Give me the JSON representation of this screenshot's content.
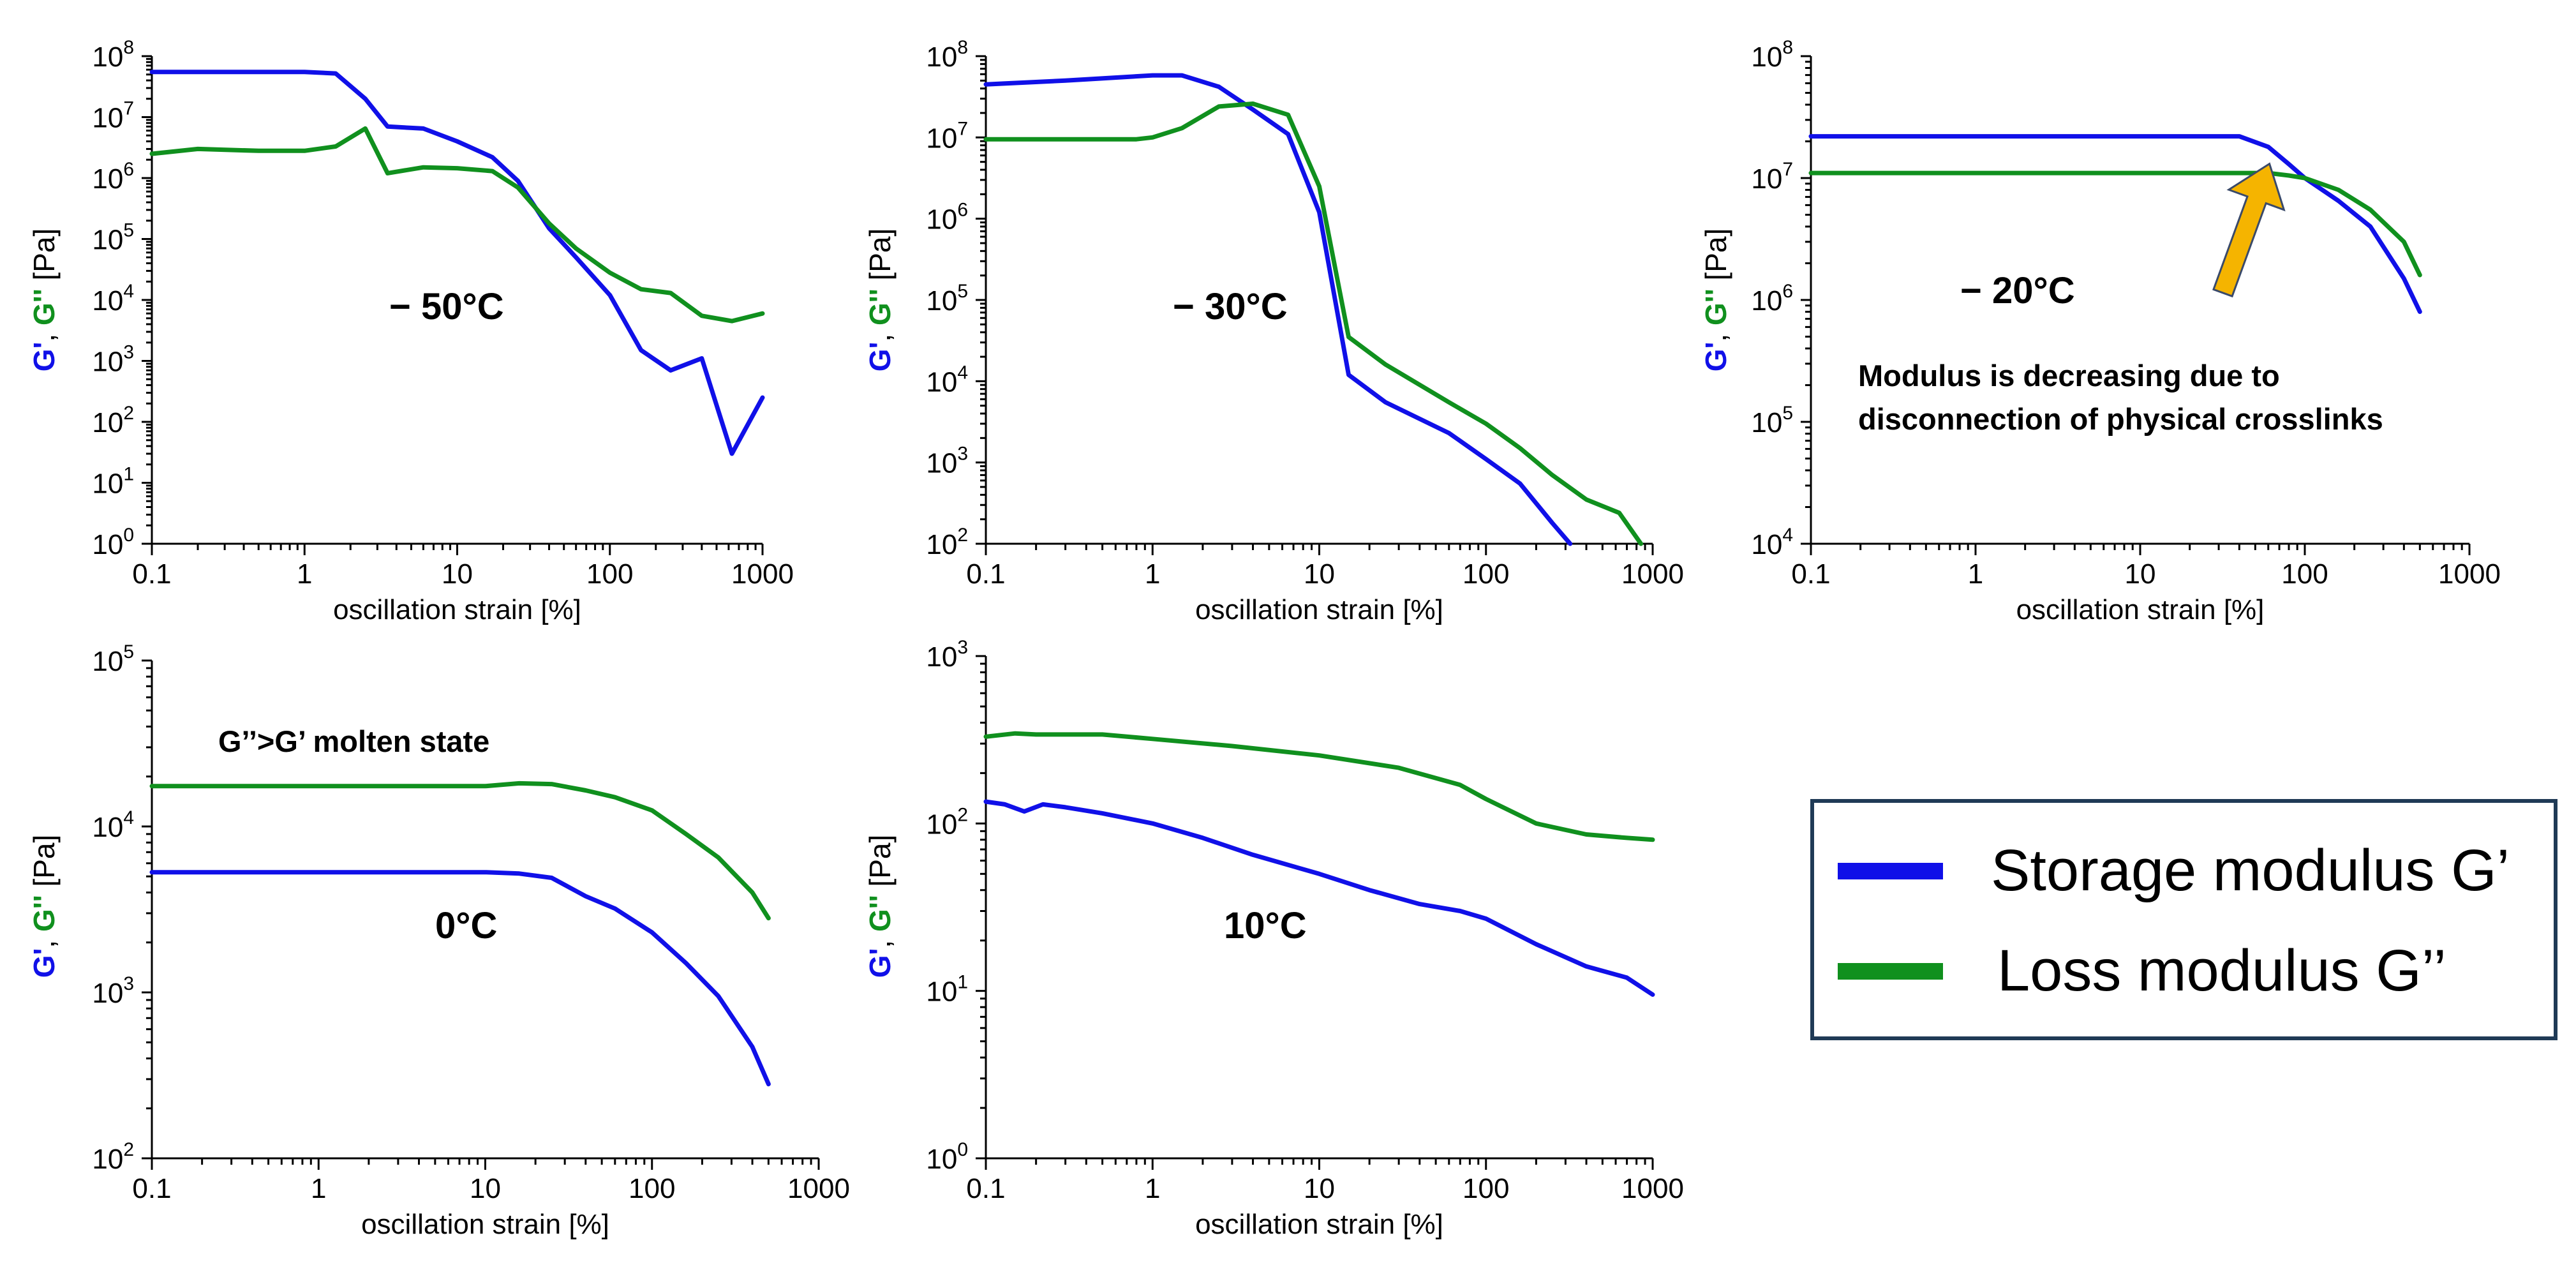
{
  "colors": {
    "storage": "#1010e8",
    "loss": "#10901e",
    "arrow": "#f5b400",
    "legend_border": "#1f3a56"
  },
  "legend": [
    {
      "label": "Storage modulus G’",
      "color": "#1010e8"
    },
    {
      "label": "Loss modulus G’’",
      "color": "#10901e"
    }
  ],
  "chart_data": [
    {
      "type": "line",
      "temperature_label": "− 50°C",
      "xlabel": "oscillation strain [%]",
      "ylabel": {
        "g1": "G'",
        "sep": ", ",
        "g2": "G''",
        "unit": " [Pa]"
      },
      "xscale": "log",
      "yscale": "log",
      "xlim": [
        0.1,
        1000
      ],
      "ylim": [
        1,
        100000000
      ],
      "x_tick_labels": [
        "0.1",
        "1",
        "10",
        "100",
        "1000"
      ],
      "y_tick_exponents": [
        "0",
        "1",
        "2",
        "3",
        "4",
        "5",
        "6",
        "7",
        "8"
      ],
      "series": [
        {
          "name": "G'",
          "color": "#1010e8",
          "points": [
            [
              0.1,
              55000000
            ],
            [
              0.3,
              55000000
            ],
            [
              1,
              55000000
            ],
            [
              1.6,
              52000000
            ],
            [
              2.5,
              20000000
            ],
            [
              3.5,
              7000000
            ],
            [
              6,
              6500000
            ],
            [
              10,
              4000000
            ],
            [
              17,
              2200000
            ],
            [
              25,
              900000
            ],
            [
              40,
              150000
            ],
            [
              60,
              50000
            ],
            [
              100,
              12000
            ],
            [
              160,
              1500
            ],
            [
              250,
              700
            ],
            [
              400,
              1100
            ],
            [
              630,
              30
            ],
            [
              1000,
              250
            ]
          ]
        },
        {
          "name": "G''",
          "color": "#10901e",
          "points": [
            [
              0.1,
              2500000
            ],
            [
              0.2,
              3000000
            ],
            [
              0.5,
              2800000
            ],
            [
              1,
              2800000
            ],
            [
              1.6,
              3300000
            ],
            [
              2.5,
              6500000
            ],
            [
              3.5,
              1200000
            ],
            [
              6,
              1500000
            ],
            [
              10,
              1450000
            ],
            [
              17,
              1300000
            ],
            [
              25,
              700000
            ],
            [
              40,
              180000
            ],
            [
              60,
              70000
            ],
            [
              100,
              28000
            ],
            [
              160,
              15000
            ],
            [
              250,
              13000
            ],
            [
              400,
              5500
            ],
            [
              630,
              4500
            ],
            [
              1000,
              6000
            ]
          ]
        }
      ]
    },
    {
      "type": "line",
      "temperature_label": "− 30°C",
      "xlabel": "oscillation strain [%]",
      "ylabel": {
        "g1": "G'",
        "sep": ", ",
        "g2": "G''",
        "unit": " [Pa]"
      },
      "xscale": "log",
      "yscale": "log",
      "xlim": [
        0.1,
        1000
      ],
      "ylim": [
        100,
        100000000
      ],
      "x_tick_labels": [
        "0.1",
        "1",
        "10",
        "100",
        "1000"
      ],
      "y_tick_exponents": [
        "2",
        "3",
        "4",
        "5",
        "6",
        "7",
        "8"
      ],
      "series": [
        {
          "name": "G'",
          "color": "#1010e8",
          "points": [
            [
              0.1,
              45000000
            ],
            [
              0.3,
              50000000
            ],
            [
              1,
              58000000
            ],
            [
              1.5,
              58000000
            ],
            [
              2.5,
              42000000
            ],
            [
              4,
              22000000
            ],
            [
              6.5,
              11000000
            ],
            [
              10,
              1200000
            ],
            [
              15,
              12000
            ],
            [
              25,
              5500
            ],
            [
              60,
              2300
            ],
            [
              100,
              1100
            ],
            [
              160,
              550
            ],
            [
              250,
              180
            ],
            [
              320,
              100
            ]
          ]
        },
        {
          "name": "G''",
          "color": "#10901e",
          "points": [
            [
              0.1,
              9500000
            ],
            [
              0.4,
              9500000
            ],
            [
              0.8,
              9500000
            ],
            [
              1,
              10000000
            ],
            [
              1.5,
              13000000
            ],
            [
              2.5,
              24000000
            ],
            [
              4,
              26000000
            ],
            [
              6.5,
              19000000
            ],
            [
              10,
              2500000
            ],
            [
              15,
              35000
            ],
            [
              25,
              16000
            ],
            [
              60,
              5500
            ],
            [
              100,
              3000
            ],
            [
              160,
              1500
            ],
            [
              250,
              700
            ],
            [
              400,
              350
            ],
            [
              630,
              240
            ],
            [
              850,
              100
            ]
          ]
        }
      ]
    },
    {
      "type": "line",
      "temperature_label": "− 20°C",
      "xlabel": "oscillation strain [%]",
      "ylabel": {
        "g1": "G'",
        "sep": ", ",
        "g2": "G''",
        "unit": " [Pa]"
      },
      "xscale": "log",
      "yscale": "log",
      "xlim": [
        0.1,
        1000
      ],
      "ylim": [
        10000,
        100000000
      ],
      "x_tick_labels": [
        "0.1",
        "1",
        "10",
        "100",
        "1000"
      ],
      "y_tick_exponents": [
        "4",
        "5",
        "6",
        "7",
        "8"
      ],
      "annotation": [
        "Modulus is decreasing due to",
        "disconnection of physical crosslinks"
      ],
      "series": [
        {
          "name": "G'",
          "color": "#1010e8",
          "points": [
            [
              0.1,
              22000000
            ],
            [
              1,
              22000000
            ],
            [
              10,
              22000000
            ],
            [
              40,
              22000000
            ],
            [
              60,
              18000000
            ],
            [
              80,
              13000000
            ],
            [
              100,
              10000000
            ],
            [
              160,
              6500000
            ],
            [
              250,
              4000000
            ],
            [
              400,
              1500000
            ],
            [
              500,
              800000
            ]
          ]
        },
        {
          "name": "G''",
          "color": "#10901e",
          "points": [
            [
              0.1,
              11000000
            ],
            [
              1,
              11000000
            ],
            [
              10,
              11000000
            ],
            [
              60,
              11000000
            ],
            [
              80,
              10500000
            ],
            [
              100,
              10000000
            ],
            [
              160,
              8000000
            ],
            [
              250,
              5500000
            ],
            [
              400,
              3000000
            ],
            [
              500,
              1600000
            ]
          ]
        }
      ]
    },
    {
      "type": "line",
      "temperature_label": "0°C",
      "xlabel": "oscillation strain [%]",
      "ylabel": {
        "g1": "G'",
        "sep": ", ",
        "g2": "G''",
        "unit": " [Pa]"
      },
      "xscale": "log",
      "yscale": "log",
      "xlim": [
        0.1,
        1000
      ],
      "ylim": [
        100,
        100000
      ],
      "x_tick_labels": [
        "0.1",
        "1",
        "10",
        "100",
        "1000"
      ],
      "y_tick_exponents": [
        "2",
        "3",
        "4",
        "5"
      ],
      "annotation": [
        "G’’>G’ molten state"
      ],
      "series": [
        {
          "name": "G'",
          "color": "#1010e8",
          "points": [
            [
              0.1,
              5300
            ],
            [
              1,
              5300
            ],
            [
              10,
              5300
            ],
            [
              16,
              5200
            ],
            [
              25,
              4900
            ],
            [
              40,
              3800
            ],
            [
              60,
              3200
            ],
            [
              100,
              2300
            ],
            [
              160,
              1500
            ],
            [
              250,
              950
            ],
            [
              400,
              470
            ],
            [
              500,
              280
            ]
          ]
        },
        {
          "name": "G''",
          "color": "#10901e",
          "points": [
            [
              0.1,
              17500
            ],
            [
              1,
              17500
            ],
            [
              10,
              17500
            ],
            [
              16,
              18200
            ],
            [
              25,
              18000
            ],
            [
              40,
              16500
            ],
            [
              60,
              15000
            ],
            [
              100,
              12500
            ],
            [
              160,
              9000
            ],
            [
              250,
              6500
            ],
            [
              400,
              4000
            ],
            [
              500,
              2800
            ]
          ]
        }
      ]
    },
    {
      "type": "line",
      "temperature_label": "10°C",
      "xlabel": "oscillation strain [%]",
      "ylabel": {
        "g1": "G'",
        "sep": ", ",
        "g2": "G''",
        "unit": " [Pa]"
      },
      "xscale": "log",
      "yscale": "log",
      "xlim": [
        0.1,
        1000
      ],
      "ylim": [
        1,
        1000
      ],
      "x_tick_labels": [
        "0.1",
        "1",
        "10",
        "100",
        "1000"
      ],
      "y_tick_exponents": [
        "0",
        "1",
        "2",
        "3"
      ],
      "series": [
        {
          "name": "G'",
          "color": "#1010e8",
          "points": [
            [
              0.1,
              135
            ],
            [
              0.13,
              130
            ],
            [
              0.17,
              118
            ],
            [
              0.22,
              130
            ],
            [
              0.3,
              125
            ],
            [
              0.5,
              115
            ],
            [
              1,
              100
            ],
            [
              2,
              82
            ],
            [
              4,
              65
            ],
            [
              10,
              50
            ],
            [
              20,
              40
            ],
            [
              40,
              33
            ],
            [
              70,
              30
            ],
            [
              100,
              27
            ],
            [
              200,
              19
            ],
            [
              400,
              14
            ],
            [
              700,
              12
            ],
            [
              1000,
              9.5
            ]
          ]
        },
        {
          "name": "G''",
          "color": "#10901e",
          "points": [
            [
              0.1,
              330
            ],
            [
              0.15,
              345
            ],
            [
              0.2,
              340
            ],
            [
              0.5,
              340
            ],
            [
              1,
              320
            ],
            [
              3,
              290
            ],
            [
              10,
              255
            ],
            [
              30,
              215
            ],
            [
              70,
              170
            ],
            [
              100,
              140
            ],
            [
              200,
              100
            ],
            [
              400,
              86
            ],
            [
              700,
              82
            ],
            [
              1000,
              80
            ]
          ]
        }
      ]
    }
  ]
}
